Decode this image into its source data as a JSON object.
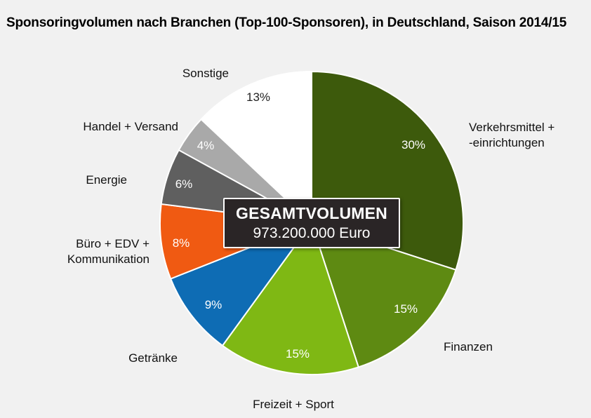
{
  "chart_data": {
    "type": "pie",
    "title": "Sponsoringvolumen nach Branchen (Top-100-Sponsoren), in Deutschland, Saison 2014/15",
    "unit": "%",
    "slices": [
      {
        "label": "Verkehrsmittel + -einrichtungen",
        "label_lines": [
          "Verkehrsmittel +",
          "-einrichtungen"
        ],
        "value": 30,
        "value_label": "30%",
        "color": "#3d5a0c",
        "value_text_color": "#ffffff"
      },
      {
        "label": "Finanzen",
        "label_lines": [
          "Finanzen"
        ],
        "value": 15,
        "value_label": "15%",
        "color": "#5e8a12",
        "value_text_color": "#ffffff"
      },
      {
        "label": "Freizeit + Sport",
        "label_lines": [
          "Freizeit + Sport"
        ],
        "value": 15,
        "value_label": "15%",
        "color": "#7fb814",
        "value_text_color": "#ffffff"
      },
      {
        "label": "Getränke",
        "label_lines": [
          "Getränke"
        ],
        "value": 9,
        "value_label": "9%",
        "color": "#0e6cb4",
        "value_text_color": "#ffffff"
      },
      {
        "label": "Büro + EDV + Kommunikation",
        "label_lines": [
          "Büro + EDV +",
          "Kommunikation"
        ],
        "value": 8,
        "value_label": "8%",
        "color": "#f05a12",
        "value_text_color": "#ffffff"
      },
      {
        "label": "Energie",
        "label_lines": [
          "Energie"
        ],
        "value": 6,
        "value_label": "6%",
        "color": "#5f5f5f",
        "value_text_color": "#ffffff"
      },
      {
        "label": "Handel + Versand",
        "label_lines": [
          "Handel + Versand"
        ],
        "value": 4,
        "value_label": "4%",
        "color": "#a9a9a9",
        "value_text_color": "#ffffff"
      },
      {
        "label": "Sonstige",
        "label_lines": [
          "Sonstige"
        ],
        "value": 13,
        "value_label": "13%",
        "color": "#ffffff",
        "value_text_color": "#222222"
      }
    ],
    "total": {
      "heading": "GESAMTVOLUMEN",
      "value": "973.200.000 Euro"
    }
  }
}
